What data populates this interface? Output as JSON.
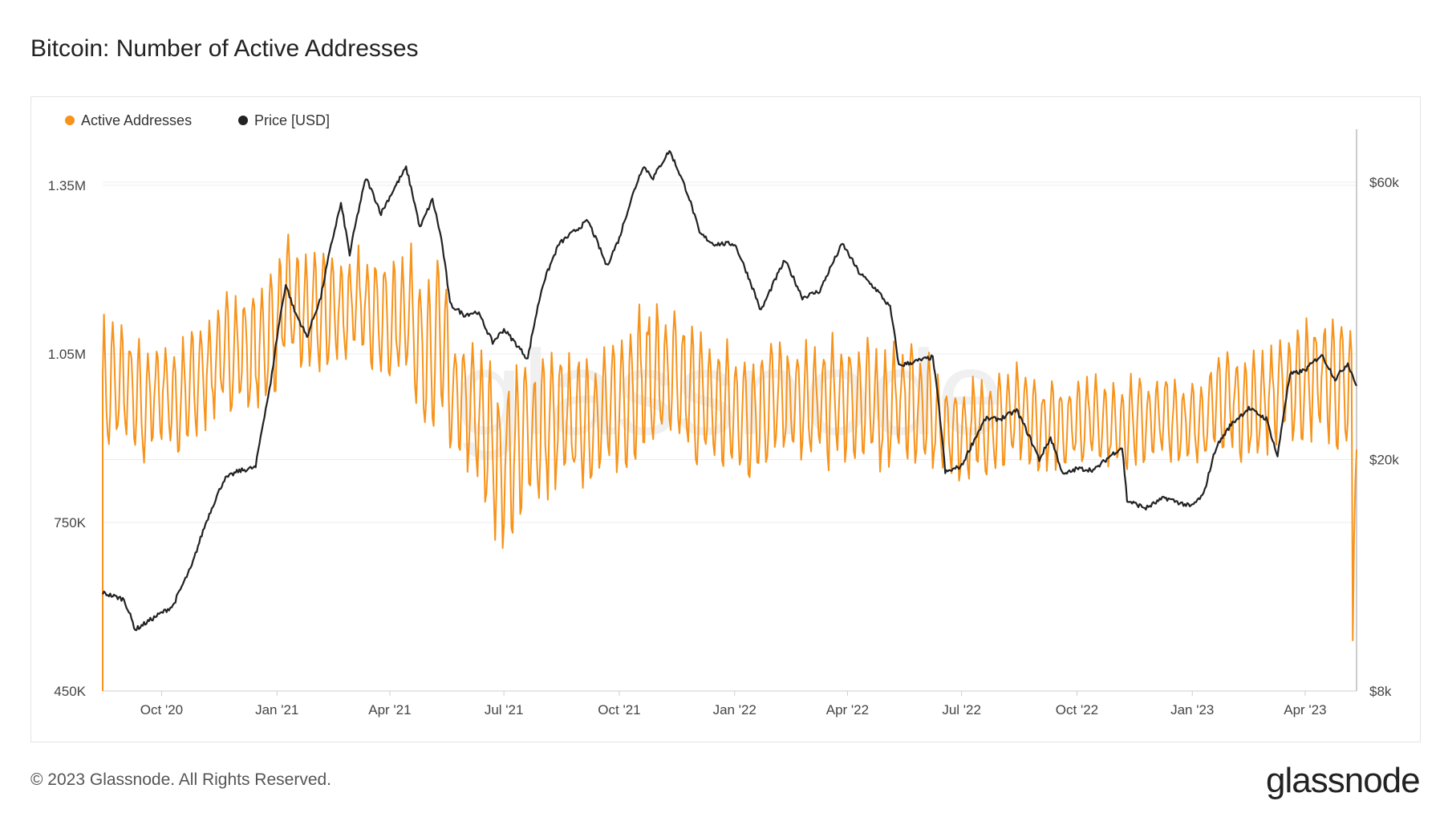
{
  "title": "Bitcoin: Number of Active Addresses",
  "footer": "© 2023 Glassnode. All Rights Reserved.",
  "brand": "glassnode",
  "watermark": "glassnode",
  "colors": {
    "active": "#F7931A",
    "price": "#222222",
    "grid": "#ececec"
  },
  "chart_data": {
    "type": "line",
    "title": "Bitcoin: Number of Active Addresses",
    "legend_position": "top-left",
    "grid": true,
    "x_ticks": [
      "Oct '20",
      "Jan '21",
      "Apr '21",
      "Jul '21",
      "Oct '21",
      "Jan '22",
      "Apr '22",
      "Jul '22",
      "Oct '22",
      "Jan '23",
      "Apr '23"
    ],
    "x_range": [
      "2020-08-15",
      "2023-05-12"
    ],
    "y_left": {
      "label": "",
      "ticks": [
        "450K",
        "750K",
        "1.05M",
        "1.35M"
      ],
      "range": [
        450000,
        1450000
      ]
    },
    "y_right": {
      "label": "",
      "scale": "log",
      "ticks": [
        "$8k",
        "$20k",
        "$60k"
      ],
      "range": [
        8000,
        74000
      ]
    },
    "series": [
      {
        "name": "Active Addresses",
        "axis": "left",
        "x": [
          "2020-08-15",
          "2020-09-01",
          "2020-09-15",
          "2020-10-01",
          "2020-10-15",
          "2020-11-01",
          "2020-11-15",
          "2020-12-01",
          "2020-12-15",
          "2021-01-01",
          "2021-01-10",
          "2021-01-20",
          "2021-02-01",
          "2021-02-15",
          "2021-03-01",
          "2021-03-15",
          "2021-04-01",
          "2021-04-15",
          "2021-04-25",
          "2021-05-01",
          "2021-05-10",
          "2021-05-20",
          "2021-06-01",
          "2021-06-15",
          "2021-06-25",
          "2021-07-01",
          "2021-07-15",
          "2021-08-01",
          "2021-08-15",
          "2021-09-01",
          "2021-09-15",
          "2021-10-01",
          "2021-10-15",
          "2021-11-01",
          "2021-11-15",
          "2021-12-01",
          "2021-12-15",
          "2022-01-01",
          "2022-01-15",
          "2022-02-01",
          "2022-02-15",
          "2022-03-01",
          "2022-03-15",
          "2022-04-01",
          "2022-04-15",
          "2022-05-01",
          "2022-05-15",
          "2022-06-01",
          "2022-06-15",
          "2022-07-01",
          "2022-07-15",
          "2022-08-01",
          "2022-08-15",
          "2022-09-01",
          "2022-09-15",
          "2022-10-01",
          "2022-10-15",
          "2022-11-01",
          "2022-11-15",
          "2022-12-01",
          "2022-12-15",
          "2023-01-01",
          "2023-01-15",
          "2023-02-01",
          "2023-02-15",
          "2023-03-01",
          "2023-03-15",
          "2023-04-01",
          "2023-04-15",
          "2023-05-01",
          "2023-05-08",
          "2023-05-12"
        ],
        "mid": [
          980000,
          1000000,
          950000,
          990000,
          960000,
          1010000,
          1040000,
          1060000,
          1050000,
          1100000,
          1150000,
          1120000,
          1120000,
          1130000,
          1130000,
          1140000,
          1100000,
          1130000,
          1080000,
          1000000,
          1100000,
          970000,
          960000,
          920000,
          860000,
          850000,
          900000,
          920000,
          930000,
          930000,
          940000,
          960000,
          1000000,
          1010000,
          1000000,
          970000,
          960000,
          950000,
          940000,
          970000,
          960000,
          960000,
          960000,
          970000,
          960000,
          950000,
          970000,
          950000,
          920000,
          910000,
          920000,
          930000,
          940000,
          920000,
          920000,
          930000,
          940000,
          920000,
          930000,
          930000,
          940000,
          920000,
          950000,
          970000,
          950000,
          970000,
          990000,
          1000000,
          1010000,
          990000,
          960000,
          860000
        ],
        "amp": [
          150000,
          120000,
          130000,
          110000,
          120000,
          120000,
          120000,
          120000,
          120000,
          130000,
          130000,
          130000,
          120000,
          120000,
          110000,
          120000,
          120000,
          130000,
          150000,
          180000,
          170000,
          150000,
          140000,
          160000,
          170000,
          170000,
          160000,
          150000,
          140000,
          150000,
          140000,
          140000,
          150000,
          150000,
          140000,
          140000,
          130000,
          130000,
          130000,
          130000,
          130000,
          120000,
          130000,
          130000,
          130000,
          130000,
          130000,
          120000,
          100000,
          100000,
          100000,
          100000,
          100000,
          90000,
          90000,
          90000,
          90000,
          90000,
          90000,
          90000,
          90000,
          90000,
          110000,
          110000,
          110000,
          110000,
          120000,
          120000,
          130000,
          130000,
          150000,
          200000
        ]
      },
      {
        "name": "Price [USD]",
        "axis": "right",
        "x": [
          "2020-08-15",
          "2020-09-01",
          "2020-09-10",
          "2020-09-25",
          "2020-10-10",
          "2020-10-25",
          "2020-11-05",
          "2020-11-20",
          "2020-12-01",
          "2020-12-15",
          "2020-12-27",
          "2021-01-08",
          "2021-01-15",
          "2021-01-25",
          "2021-02-05",
          "2021-02-21",
          "2021-02-28",
          "2021-03-13",
          "2021-03-25",
          "2021-04-14",
          "2021-04-25",
          "2021-05-05",
          "2021-05-12",
          "2021-05-19",
          "2021-05-30",
          "2021-06-10",
          "2021-06-22",
          "2021-07-01",
          "2021-07-20",
          "2021-08-01",
          "2021-08-14",
          "2021-09-06",
          "2021-09-21",
          "2021-10-01",
          "2021-10-20",
          "2021-10-28",
          "2021-11-10",
          "2021-11-25",
          "2021-12-04",
          "2021-12-15",
          "2022-01-01",
          "2022-01-22",
          "2022-02-10",
          "2022-02-24",
          "2022-03-10",
          "2022-03-28",
          "2022-04-10",
          "2022-04-25",
          "2022-05-05",
          "2022-05-12",
          "2022-05-25",
          "2022-06-08",
          "2022-06-18",
          "2022-07-01",
          "2022-07-20",
          "2022-08-01",
          "2022-08-14",
          "2022-09-01",
          "2022-09-10",
          "2022-09-20",
          "2022-10-01",
          "2022-10-15",
          "2022-10-30",
          "2022-11-06",
          "2022-11-10",
          "2022-11-25",
          "2022-12-10",
          "2022-12-31",
          "2023-01-10",
          "2023-01-20",
          "2023-02-01",
          "2023-02-15",
          "2023-03-01",
          "2023-03-10",
          "2023-03-20",
          "2023-04-01",
          "2023-04-14",
          "2023-04-25",
          "2023-05-05",
          "2023-05-12"
        ],
        "y": [
          11800,
          11500,
          10200,
          10700,
          11200,
          13100,
          15500,
          18500,
          19100,
          19400,
          27000,
          40000,
          36000,
          32500,
          38000,
          55000,
          45000,
          61000,
          53000,
          63500,
          50000,
          56000,
          48000,
          37000,
          35500,
          35900,
          31800,
          33500,
          29800,
          40000,
          47000,
          51500,
          43000,
          48000,
          64000,
          61000,
          68000,
          57000,
          49000,
          47000,
          47000,
          36000,
          44000,
          38000,
          39000,
          47000,
          42000,
          39000,
          36500,
          29000,
          29500,
          30000,
          19000,
          19500,
          23500,
          23500,
          24300,
          20000,
          21800,
          18800,
          19300,
          19200,
          20500,
          21000,
          17000,
          16500,
          17200,
          16600,
          17400,
          21000,
          23000,
          24500,
          23500,
          20200,
          28000,
          28500,
          30300,
          27500,
          29300,
          26800
        ]
      }
    ]
  }
}
